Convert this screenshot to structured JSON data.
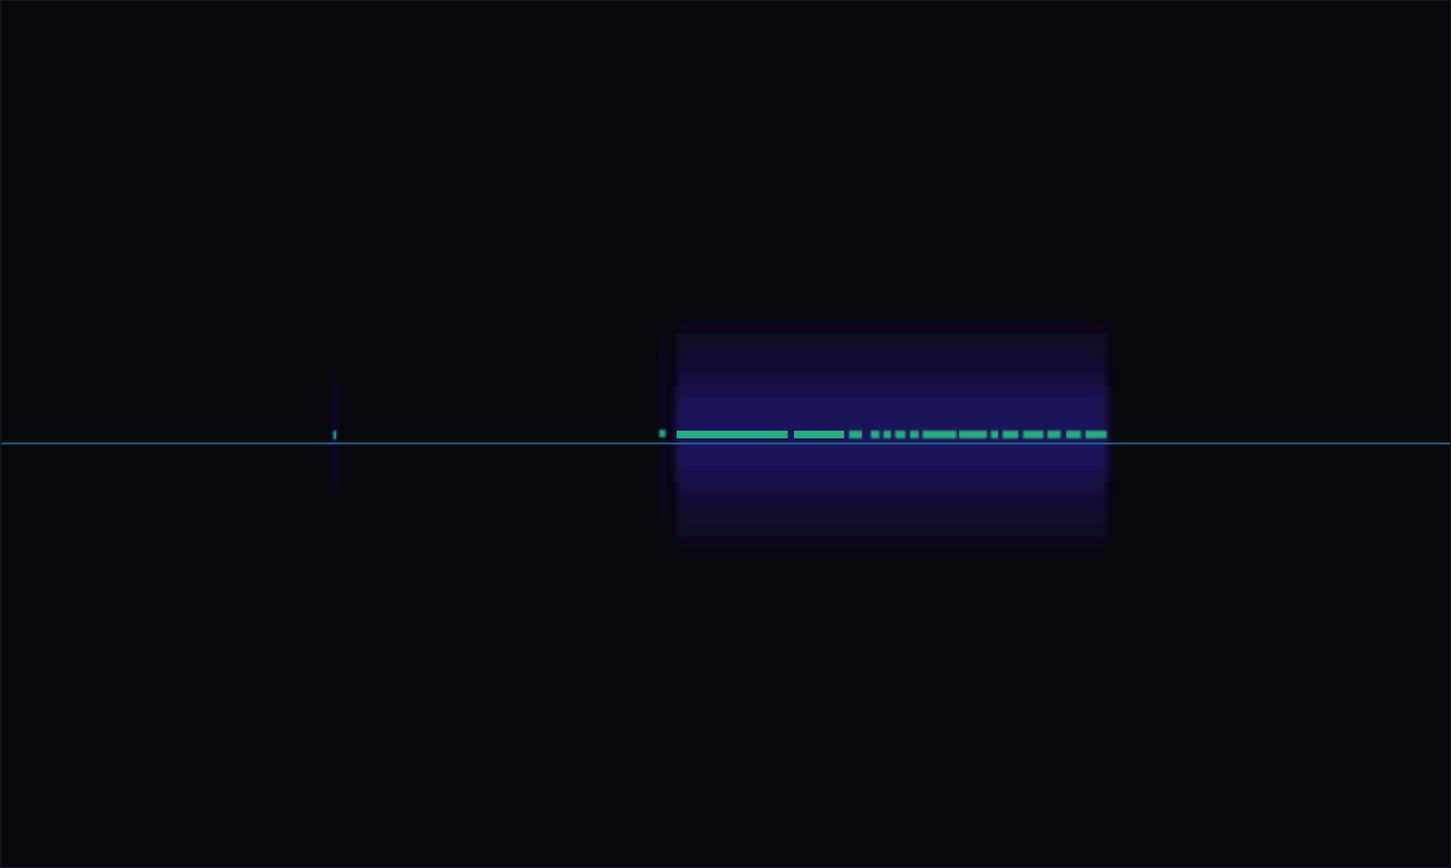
{
  "chart_data": {
    "type": "spectrogram",
    "tick_labels": false,
    "xlim": [
      0,
      100
    ],
    "ylim": [
      0,
      100
    ],
    "color_range": [
      0,
      1
    ],
    "cells": [
      {
        "x": [
          46.6,
          76.3
        ],
        "y": [
          38.2,
          61.6
        ],
        "value": 0.12
      },
      {
        "x": [
          46.6,
          76.3
        ],
        "y": [
          44.5,
          55.5
        ],
        "value": 0.25
      },
      {
        "x": [
          45.5,
          45.8
        ],
        "y": [
          40.0,
          62.0
        ],
        "value": 0.18
      },
      {
        "x": [
          22.9,
          23.3
        ],
        "y": [
          44.0,
          56.0
        ],
        "value": 0.2
      },
      {
        "x": [
          0,
          100
        ],
        "y": [
          48.75,
          49.05
        ],
        "value": 0.55
      },
      {
        "x": [
          22.95,
          23.2
        ],
        "y": [
          49.4,
          50.4
        ],
        "value": 0.72
      },
      {
        "x": [
          45.45,
          45.85
        ],
        "y": [
          49.6,
          50.5
        ],
        "value": 0.75
      },
      {
        "x": [
          46.6,
          54.3
        ],
        "y": [
          49.5,
          50.4
        ],
        "value": 0.8
      },
      {
        "x": [
          54.7,
          58.2
        ],
        "y": [
          49.5,
          50.4
        ],
        "value": 0.8
      },
      {
        "x": [
          58.5,
          59.4
        ],
        "y": [
          49.5,
          50.4
        ],
        "value": 0.8
      },
      {
        "x": [
          60.0,
          60.6
        ],
        "y": [
          49.5,
          50.4
        ],
        "value": 0.8
      },
      {
        "x": [
          60.9,
          61.4
        ],
        "y": [
          49.5,
          50.4
        ],
        "value": 0.8
      },
      {
        "x": [
          61.7,
          62.4
        ],
        "y": [
          49.5,
          50.4
        ],
        "value": 0.8
      },
      {
        "x": [
          62.7,
          63.3
        ],
        "y": [
          49.5,
          50.4
        ],
        "value": 0.8
      },
      {
        "x": [
          63.6,
          65.9
        ],
        "y": [
          49.5,
          50.4
        ],
        "value": 0.8
      },
      {
        "x": [
          66.1,
          68.0
        ],
        "y": [
          49.5,
          50.4
        ],
        "value": 0.8
      },
      {
        "x": [
          68.3,
          68.8
        ],
        "y": [
          49.5,
          50.4
        ],
        "value": 0.8
      },
      {
        "x": [
          69.1,
          70.2
        ],
        "y": [
          49.5,
          50.4
        ],
        "value": 0.8
      },
      {
        "x": [
          70.5,
          71.9
        ],
        "y": [
          49.5,
          50.4
        ],
        "value": 0.8
      },
      {
        "x": [
          72.2,
          73.1
        ],
        "y": [
          49.5,
          50.4
        ],
        "value": 0.8
      },
      {
        "x": [
          73.5,
          74.5
        ],
        "y": [
          49.5,
          50.4
        ],
        "value": 0.8
      },
      {
        "x": [
          74.8,
          76.3
        ],
        "y": [
          49.5,
          50.4
        ],
        "value": 0.8
      }
    ]
  }
}
